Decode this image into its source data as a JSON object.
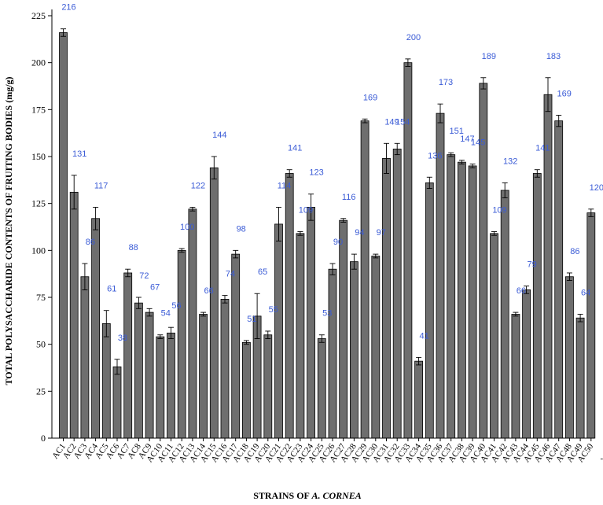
{
  "chart_data": {
    "type": "bar",
    "xlabel": "STRAINS OF A. CORNEA",
    "xlabel_prefix": "STRAINS OF ",
    "xlabel_species": "A. CORNEA",
    "ylabel": "TOTAL POLYSACCHARIDE CONTENTS OF FRUITING BODIES (mg/g)",
    "ylim": [
      0,
      225
    ],
    "yticks": [
      0,
      25,
      50,
      75,
      100,
      125,
      150,
      175,
      200,
      225
    ],
    "categories": [
      "AC1",
      "AC2",
      "AC3",
      "AC4",
      "AC5",
      "AC6",
      "AC7",
      "AC8",
      "AC9",
      "AC10",
      "AC11",
      "AC12",
      "AC13",
      "AC14",
      "AC15",
      "AC16",
      "AC17",
      "AC18",
      "AC19",
      "AC20",
      "AC21",
      "AC22",
      "AC23",
      "AC24",
      "AC25",
      "AC26",
      "AC27",
      "AC28",
      "AC29",
      "AC30",
      "AC31",
      "AC32",
      "AC33",
      "AC34",
      "AC35",
      "AC36",
      "AC37",
      "AC38",
      "AC39",
      "AC40",
      "AC41",
      "AC42",
      "AC43",
      "AC44",
      "AC45",
      "AC46",
      "AC47",
      "AC48",
      "AC49",
      "AC50"
    ],
    "values": [
      216,
      131,
      86,
      117,
      61,
      38,
      88,
      72,
      67,
      54,
      56,
      100,
      122,
      66,
      144,
      74,
      98,
      51,
      65,
      55,
      114,
      141,
      109,
      123,
      53,
      90,
      116,
      94,
      169,
      97,
      149,
      154,
      200,
      41,
      136,
      173,
      151,
      147,
      145,
      189,
      109,
      132,
      66,
      79,
      141,
      183,
      169,
      86,
      64,
      120
    ],
    "errors": [
      2,
      9,
      7,
      6,
      7,
      4,
      2,
      3,
      2,
      1,
      3,
      1,
      1,
      1,
      6,
      2,
      2,
      1,
      12,
      2,
      9,
      2,
      1,
      7,
      2,
      3,
      1,
      4,
      1,
      1,
      8,
      3,
      2,
      2,
      3,
      5,
      1,
      1,
      1,
      3,
      1,
      4,
      1,
      2,
      2,
      9,
      3,
      2,
      2,
      2
    ],
    "data_labels": [
      "216",
      "131",
      "86",
      "117",
      "61",
      "38",
      "88",
      "72",
      "67",
      "54",
      "56",
      "100",
      "122",
      "66",
      "144",
      "74",
      "98",
      "51",
      "65",
      "55",
      "114",
      "141",
      "109",
      "123",
      "53",
      "90",
      "116",
      "94",
      "169",
      "97",
      "149",
      "154",
      "200",
      "41",
      "136",
      "173",
      "151",
      "147",
      "145",
      "189",
      "109",
      "132",
      "66",
      "79",
      "141",
      "183",
      "169",
      "86",
      "64",
      "120"
    ],
    "trailing_tick": "-",
    "grid": false,
    "legend": "none",
    "bar_color": "#6e6e6e",
    "label_color": "#3a5bd6"
  }
}
